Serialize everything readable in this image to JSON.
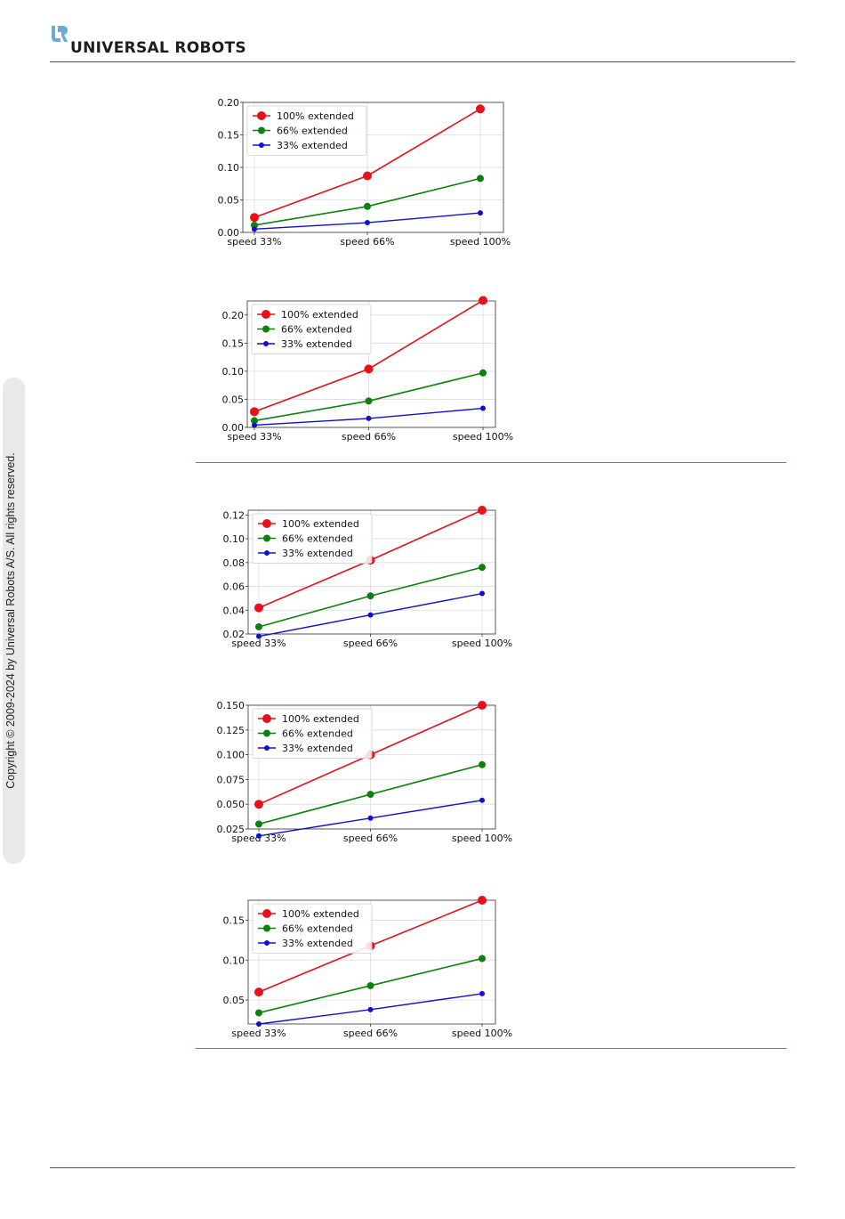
{
  "header": {
    "brand": "UNIVERSAL ROBOTS",
    "logo_icon": "ur-logo-icon"
  },
  "sidebar": {
    "copyright": "Copyright © 2009-2024 by Universal Robots A/S. All rights reserved."
  },
  "colors": {
    "red": "#e8101a",
    "green": "#0e800e",
    "blue": "#1010d0",
    "rule_blue": "#2e8fd8"
  },
  "chart_data": [
    {
      "type": "line",
      "categories": [
        "speed 33%",
        "speed 66%",
        "speed 100%"
      ],
      "ylim": [
        0.0,
        0.2
      ],
      "yticks": [
        "0.00",
        "0.05",
        "0.10",
        "0.15",
        "0.20"
      ],
      "grid": true,
      "legend": "top-left",
      "series": [
        {
          "name": "100% extended",
          "values": [
            0.023,
            0.087,
            0.19
          ]
        },
        {
          "name": "66% extended",
          "values": [
            0.011,
            0.04,
            0.083
          ]
        },
        {
          "name": "33% extended",
          "values": [
            0.005,
            0.015,
            0.03
          ]
        }
      ]
    },
    {
      "type": "line",
      "categories": [
        "speed 33%",
        "speed 66%",
        "speed 100%"
      ],
      "ylim": [
        0.0,
        0.225
      ],
      "yticks": [
        "0.00",
        "0.05",
        "0.10",
        "0.15",
        "0.20"
      ],
      "grid": true,
      "legend": "top-left",
      "series": [
        {
          "name": "100% extended",
          "values": [
            0.028,
            0.104,
            0.226
          ]
        },
        {
          "name": "66% extended",
          "values": [
            0.012,
            0.047,
            0.097
          ]
        },
        {
          "name": "33% extended",
          "values": [
            0.004,
            0.016,
            0.034
          ]
        }
      ]
    },
    {
      "type": "line",
      "categories": [
        "speed 33%",
        "speed 66%",
        "speed 100%"
      ],
      "ylim": [
        0.02,
        0.124
      ],
      "yticks": [
        "0.02",
        "0.04",
        "0.06",
        "0.08",
        "0.10",
        "0.12"
      ],
      "grid": true,
      "legend": "top-left",
      "series": [
        {
          "name": "100% extended",
          "values": [
            0.042,
            0.082,
            0.124
          ]
        },
        {
          "name": "66% extended",
          "values": [
            0.026,
            0.052,
            0.076
          ]
        },
        {
          "name": "33% extended",
          "values": [
            0.018,
            0.036,
            0.054
          ]
        }
      ]
    },
    {
      "type": "line",
      "categories": [
        "speed 33%",
        "speed 66%",
        "speed 100%"
      ],
      "ylim": [
        0.025,
        0.15
      ],
      "yticks": [
        "0.025",
        "0.050",
        "0.075",
        "0.100",
        "0.125",
        "0.150"
      ],
      "grid": true,
      "legend": "top-left",
      "series": [
        {
          "name": "100% extended",
          "values": [
            0.05,
            0.1,
            0.15
          ]
        },
        {
          "name": "66% extended",
          "values": [
            0.03,
            0.06,
            0.09
          ]
        },
        {
          "name": "33% extended",
          "values": [
            0.018,
            0.036,
            0.054
          ]
        }
      ]
    },
    {
      "type": "line",
      "categories": [
        "speed 33%",
        "speed 66%",
        "speed 100%"
      ],
      "ylim": [
        0.02,
        0.175
      ],
      "yticks": [
        "0.05",
        "0.10",
        "0.15"
      ],
      "grid": true,
      "legend": "top-left",
      "series": [
        {
          "name": "100% extended",
          "values": [
            0.06,
            0.118,
            0.175
          ]
        },
        {
          "name": "66% extended",
          "values": [
            0.034,
            0.068,
            0.102
          ]
        },
        {
          "name": "33% extended",
          "values": [
            0.02,
            0.038,
            0.058
          ]
        }
      ]
    }
  ]
}
